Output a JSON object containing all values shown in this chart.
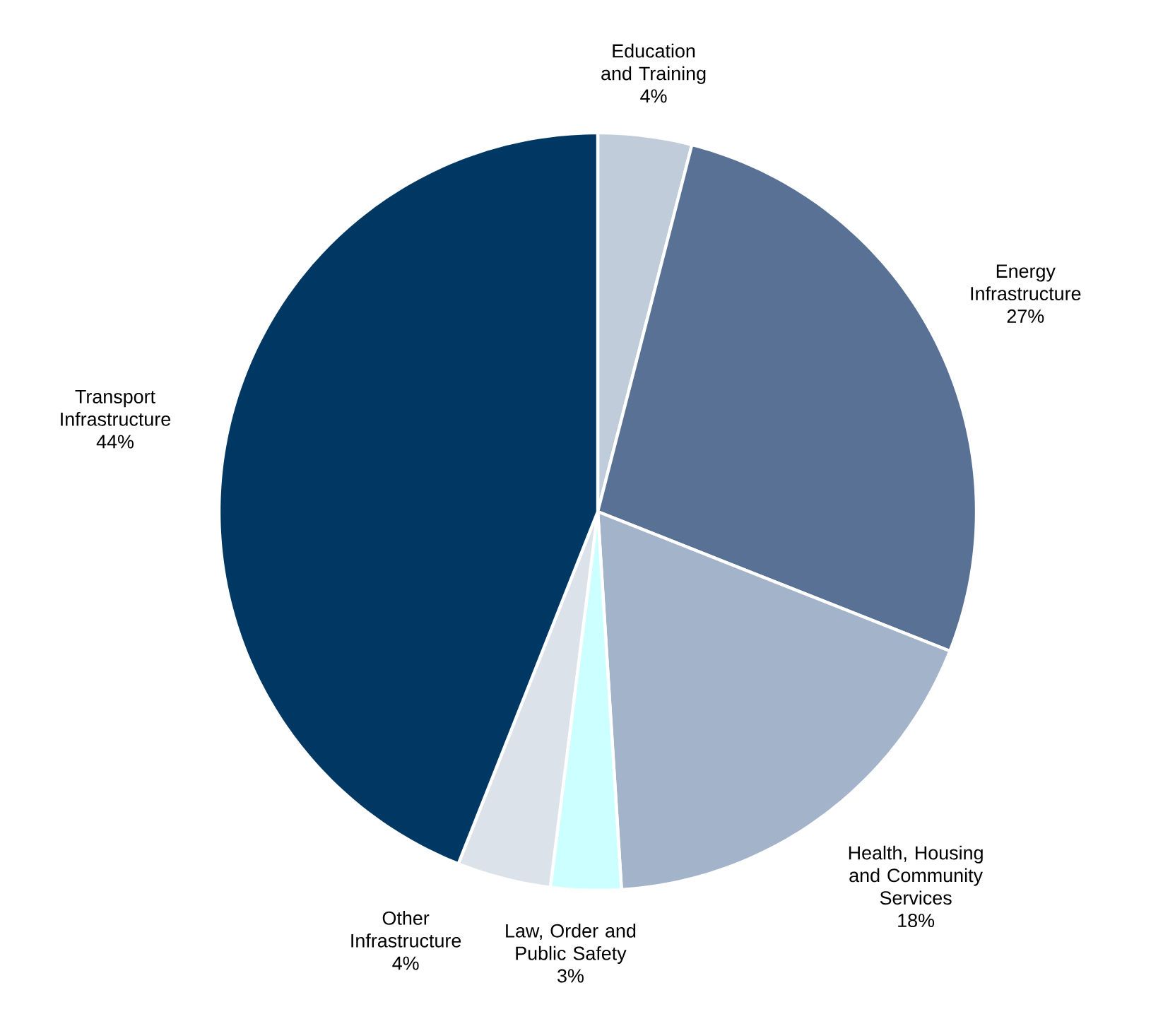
{
  "chart_data": {
    "type": "pie",
    "categories": [
      "Education and Training",
      "Energy Infrastructure",
      "Health, Housing and Community Services",
      "Law, Order and Public Safety",
      "Other Infrastructure",
      "Transport Infrastructure"
    ],
    "values": [
      4,
      27,
      18,
      3,
      4,
      44
    ],
    "value_labels": [
      "4%",
      "27%",
      "18%",
      "3%",
      "4%",
      "44%"
    ],
    "colors": [
      "#c0ccda",
      "#587194",
      "#a3b3c9",
      "#ccffff",
      "#dce2ea",
      "#003864"
    ]
  }
}
